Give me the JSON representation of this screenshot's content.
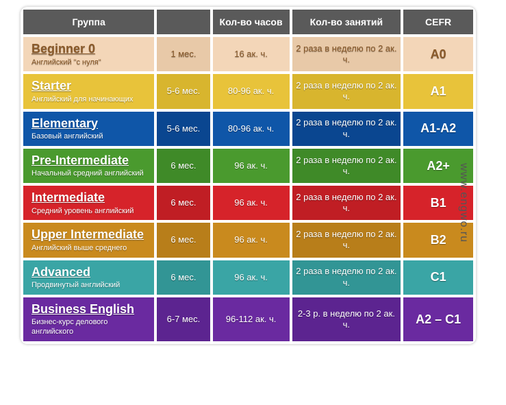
{
  "watermark": "www.engwo.ru",
  "headers": {
    "group": "Группа",
    "duration": "",
    "hours": "Кол-во часов",
    "classes": "Кол-во занятий",
    "cefr": "CEFR"
  },
  "row_colors": {
    "r0_main": "#f3d6b8",
    "r0_alt": "#e8c9a8",
    "r0_text": "#8a5a2a",
    "r1_main": "#e8c33a",
    "r1_alt": "#d8b52e",
    "r2_main": "#0f56a8",
    "r2_alt": "#0a4690",
    "r3_main": "#4a9a2e",
    "r3_alt": "#3f8a28",
    "r4_main": "#d6232a",
    "r4_alt": "#c01e24",
    "r5_main": "#c98a1e",
    "r5_alt": "#b87e1a",
    "r6_main": "#3aa5a5",
    "r6_alt": "#329595",
    "r7_main": "#6a2aa0",
    "r7_alt": "#5c2490"
  },
  "rows": [
    {
      "level": "Beginner 0",
      "subtitle": "Английский \"с нуля\"",
      "duration": "1 мес.",
      "hours": "16 ак. ч.",
      "classes": "2 раза в неделю по 2 ак. ч.",
      "cefr": "A0"
    },
    {
      "level": "Starter",
      "subtitle": "Английский для начинающих",
      "duration": "5-6 мес.",
      "hours": "80-96 ак. ч.",
      "classes": "2 раза в неделю по 2 ак. ч.",
      "cefr": "A1"
    },
    {
      "level": "Elementary",
      "subtitle": "Базовый английский",
      "duration": "5-6 мес.",
      "hours": "80-96 ак. ч.",
      "classes": "2 раза в неделю по 2 ак. ч.",
      "cefr": "A1-A2"
    },
    {
      "level": "Pre-Intermediate",
      "subtitle": "Начальный средний английский",
      "duration": "6 мес.",
      "hours": "96 ак. ч.",
      "classes": "2 раза в неделю по 2 ак. ч.",
      "cefr": "A2+"
    },
    {
      "level": "Intermediate",
      "subtitle": "Средний уровень английский",
      "duration": "6 мес.",
      "hours": "96 ак. ч.",
      "classes": "2 раза в неделю по 2 ак. ч.",
      "cefr": "B1"
    },
    {
      "level": "Upper Intermediate",
      "subtitle": "Английский выше среднего",
      "duration": "6 мес.",
      "hours": "96 ак. ч.",
      "classes": "2 раза в неделю по 2 ак. ч.",
      "cefr": "B2"
    },
    {
      "level": "Advanced",
      "subtitle": "Продвинутый английский",
      "duration": "6 мес.",
      "hours": "96 ак. ч.",
      "classes": "2 раза в неделю по 2 ак. ч.",
      "cefr": "C1"
    },
    {
      "level": "Business English",
      "subtitle": "Бизнес-курс делового английского",
      "duration": "6-7 мес.",
      "hours": "96-112 ак. ч.",
      "classes": "2-3 р. в неделю по 2 ак. ч.",
      "cefr": "A2 – C1"
    }
  ]
}
